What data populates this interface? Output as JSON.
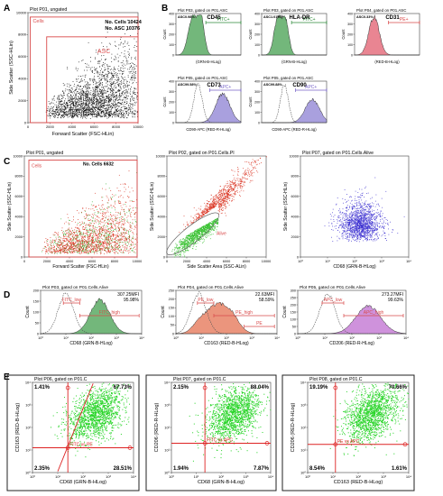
{
  "panel_letters": [
    "A",
    "B",
    "C",
    "D",
    "E"
  ],
  "chart_data": [
    {
      "id": "A",
      "type": "scatter",
      "title": "Plot P01, ungated",
      "xlabel": "Forward Scatter (FSC-HLin)",
      "ylabel": "Side Scatter (SSC-HLin)",
      "xlim": [
        0,
        10000
      ],
      "ylim": [
        0,
        10000
      ],
      "xticks": [
        "0",
        "2000",
        "4000",
        "6000",
        "8000",
        "10000"
      ],
      "yticks": [
        "0",
        "2000",
        "4000",
        "6000",
        "8000",
        "10000"
      ],
      "gates": [
        {
          "name": "Cells",
          "x0": 200,
          "x1": 10000,
          "y0": 0,
          "y1": 9600,
          "color": "#d94a4a"
        },
        {
          "name": "ASC",
          "x0": 1700,
          "x1": 10000,
          "y0": 0,
          "y1": 7800,
          "color": "#d94a4a"
        }
      ],
      "annotations": [
        "No. Cells 10424",
        "No. ASC 10376"
      ],
      "point_color": "#111111"
    },
    {
      "id": "B1",
      "type": "area",
      "title": "Plot P03, gated on P01.ASC",
      "marker": "CD45",
      "percent": "ASC0.98%",
      "xlabel": "(GRN-B-HLog)",
      "ylabel": "Count",
      "xlim": [
        0,
        5
      ],
      "ylim": [
        0,
        400
      ],
      "yticks": [
        "0",
        "100",
        "200",
        "300",
        "400"
      ],
      "gate": {
        "label": "FITC+",
        "from": 2.3,
        "to": 5
      },
      "peaks": [
        {
          "mu": 1.3,
          "sd": 0.35,
          "h": 1.0
        },
        {
          "mu": 1.95,
          "sd": 0.25,
          "h": 0.9
        }
      ],
      "fill": "#5aaa64"
    },
    {
      "id": "B2",
      "type": "area",
      "title": "Plot P03, gated on P01.ASC",
      "marker": "HLA-DR",
      "percent": "ASC1.01%",
      "xlabel": "(GRN-B-HLog)",
      "ylabel": "Count",
      "xlim": [
        0,
        5
      ],
      "ylim": [
        0,
        400
      ],
      "yticks": [
        "0",
        "100",
        "200",
        "300",
        "400"
      ],
      "gate": {
        "label": "FITC+",
        "from": 2.3,
        "to": 5
      },
      "peaks": [
        {
          "mu": 1.25,
          "sd": 0.3,
          "h": 0.95
        },
        {
          "mu": 1.85,
          "sd": 0.25,
          "h": 0.85
        }
      ],
      "fill": "#5aaa64"
    },
    {
      "id": "B3",
      "type": "area",
      "title": "Plot P04, gated on P01.ASC",
      "marker": "CD31",
      "percent": "ASC0.33%",
      "xlabel": "(RED-B-HLog)",
      "ylabel": "Count",
      "xlim": [
        0,
        5
      ],
      "ylim": [
        0,
        400
      ],
      "yticks": [
        "0",
        "100",
        "200",
        "300",
        "400"
      ],
      "gate": {
        "label": "PE+",
        "from": 2.6,
        "to": 5
      },
      "peaks": [
        {
          "mu": 1.5,
          "sd": 0.4,
          "h": 1.0
        }
      ],
      "fill": "#e5707f"
    },
    {
      "id": "B4",
      "type": "area",
      "title": "Plot P05, gated on P01.ASC",
      "marker": "CD73",
      "percent": "ASC99.58%",
      "xlabel": "CD90-APC (RED-R-HLog)",
      "ylabel": "Count",
      "xlim": [
        0,
        5
      ],
      "ylim": [
        0,
        400
      ],
      "yticks": [
        "0",
        "100",
        "200",
        "300",
        "400"
      ],
      "gate": {
        "label": "APC+",
        "from": 2.6,
        "to": 5
      },
      "peaks": [
        {
          "mu": 3.6,
          "sd": 0.55,
          "h": 0.75
        }
      ],
      "control": {
        "mu": 1.7,
        "sd": 0.32,
        "h": 1.0
      },
      "fill": "#9a8fd8"
    },
    {
      "id": "B5",
      "type": "area",
      "title": "Plot P05, gated on P01.ASC",
      "marker": "CD90",
      "percent": "ASC99.88%",
      "xlabel": "CD90-APC (RED-R-HLog)",
      "ylabel": "Count",
      "xlim": [
        0,
        5
      ],
      "ylim": [
        0,
        400
      ],
      "yticks": [
        "0",
        "100",
        "200",
        "300",
        "400"
      ],
      "gate": {
        "label": "APC+",
        "from": 2.6,
        "to": 5
      },
      "peaks": [
        {
          "mu": 3.9,
          "sd": 0.55,
          "h": 0.6
        }
      ],
      "control": {
        "mu": 1.75,
        "sd": 0.3,
        "h": 1.0
      },
      "fill": "#9a8fd8"
    },
    {
      "id": "C1",
      "type": "scatter",
      "title": "Plot P01, ungated",
      "xlabel": "Forward Scatter (FSC-HLin)",
      "ylabel": "Side Scatter (SSC-HLin)",
      "xlim": [
        0,
        10000
      ],
      "ylim": [
        0,
        10000
      ],
      "xticks": [
        "0",
        "2000",
        "4000",
        "6000",
        "8000",
        "10000"
      ],
      "yticks": [
        "0",
        "2000",
        "4000",
        "6000",
        "8000",
        "10000"
      ],
      "gates": [
        {
          "name": "Cells",
          "x0": 400,
          "x1": 10000,
          "y0": 0,
          "y1": 9600,
          "color": "#d94a4a"
        }
      ],
      "annotations": [
        "No. Cells 6632"
      ],
      "point_color": "#d9311e"
    },
    {
      "id": "C2",
      "type": "scatter",
      "title": "Plot P02, gated on P01.Cells.PI",
      "xlabel": "Side Scatter Area (SSC-ALin)",
      "ylabel": "Side Scatter (SSC-HLin)",
      "xlim": [
        0,
        10000
      ],
      "ylim": [
        0,
        10000
      ],
      "xticks": [
        "0",
        "2000",
        "4000",
        "6000",
        "8000",
        "10000"
      ],
      "yticks": [
        "0",
        "2000",
        "4000",
        "6000",
        "8000",
        "10000"
      ],
      "gate_label": "Alive",
      "point_color": "#d9311e"
    },
    {
      "id": "C3",
      "type": "scatter",
      "title": "Plot P07, gated on P01.Cells.Alive",
      "xlabel": "CD68 (GRN-B-HLog)",
      "ylabel": "Side Scatter (SSC-HLin)",
      "xlim": [
        0,
        4
      ],
      "ylim": [
        0,
        10000
      ],
      "xticks": [
        "10⁰",
        "10¹",
        "10²",
        "10³",
        "10⁴"
      ],
      "yticks": [
        "0",
        "2000",
        "4000",
        "6000",
        "8000",
        "10000"
      ],
      "point_color": "#3b2fd0"
    },
    {
      "id": "D1",
      "type": "area",
      "title": "Plot P03, gated on P01.Cells.Alive",
      "xlabel": "CD68 (GRN-B-HLog)",
      "ylabel": "Count",
      "xlim": [
        0,
        4
      ],
      "ylim": [
        0,
        200
      ],
      "xticks": [
        "10⁰",
        "10¹",
        "10²",
        "10³",
        "10⁴"
      ],
      "yticks": [
        "0",
        "50",
        "100",
        "150",
        "200"
      ],
      "mfi": "307.25MFI",
      "percent": "95.98%",
      "gate_low": {
        "label": "FITC_low",
        "from": 0.9,
        "to": 1.55
      },
      "gate_high": {
        "label": "FITC_high",
        "from": 1.55,
        "to": 3.9
      },
      "peaks": [
        {
          "mu": 2.35,
          "sd": 0.38,
          "h": 0.85
        }
      ],
      "control": {
        "mu": 1.0,
        "sd": 0.3,
        "h": 1.0
      },
      "fill": "#5aaa64"
    },
    {
      "id": "D2",
      "type": "area",
      "title": "Plot P04, gated on P01.Cells.Alive",
      "xlabel": "CD163 (RED-B-HLog)",
      "ylabel": "Count",
      "xlim": [
        0,
        4
      ],
      "ylim": [
        0,
        250
      ],
      "xticks": [
        "10⁰",
        "10¹",
        "10²",
        "10³",
        "10⁴"
      ],
      "yticks": [
        "0",
        "50",
        "100",
        "150",
        "200",
        "250"
      ],
      "mfi": "22.63MFI",
      "percent": "58.59%",
      "gate_low": {
        "label": "PE_low",
        "from": 0.85,
        "to": 1.5
      },
      "gate_high": {
        "label": "PE_high",
        "from": 1.5,
        "to": 3.9
      },
      "gate_extra": {
        "label": "PE",
        "from": 2.7,
        "to": 3.9
      },
      "peaks": [
        {
          "mu": 1.0,
          "sd": 0.3,
          "h": 0.35
        },
        {
          "mu": 1.55,
          "sd": 0.3,
          "h": 0.5
        },
        {
          "mu": 2.1,
          "sd": 0.35,
          "h": 0.55
        }
      ],
      "control": {
        "mu": 0.9,
        "sd": 0.3,
        "h": 1.0
      },
      "fill": "#e88266"
    },
    {
      "id": "D3",
      "type": "area",
      "title": "Plot P05, gated on P01.Cells.Alive",
      "xlabel": "CD206 (RED-R-HLog)",
      "ylabel": "Count",
      "xlim": [
        0,
        4
      ],
      "ylim": [
        0,
        300
      ],
      "xticks": [
        "10⁰",
        "10¹",
        "10²",
        "10³",
        "10⁴"
      ],
      "yticks": [
        "0",
        "50",
        "100",
        "150",
        "200",
        "250",
        "300"
      ],
      "mfi": "273.27MFI",
      "percent": "99.63%",
      "gate_low": {
        "label": "APC_low",
        "from": 0.9,
        "to": 1.7
      },
      "gate_high": {
        "label": "APC_high",
        "from": 1.7,
        "to": 3.9
      },
      "peaks": [
        {
          "mu": 2.6,
          "sd": 0.45,
          "h": 0.7
        }
      ],
      "control": {
        "mu": 1.1,
        "sd": 0.28,
        "h": 1.0
      },
      "fill": "#c77fd6"
    },
    {
      "id": "E1",
      "type": "scatter",
      "title": "Plot P06, gated on P01.C",
      "xlabel": "CD68 (GRN-B-HLog)",
      "ylabel": "CD163 (RED-B-HLog)",
      "xlim": [
        0,
        4
      ],
      "ylim": [
        0,
        4
      ],
      "xticks": [
        "10⁰",
        "10¹",
        "10²",
        "10³",
        "10⁴"
      ],
      "yticks": [
        "10⁰",
        "10¹",
        "10²",
        "10³",
        "10⁴"
      ],
      "quad_x": 1.4,
      "quad_y": 1.1,
      "quadrants": {
        "ul": "1.41%",
        "ur": "67.73%",
        "ll": "2.35%",
        "lr": "28.51%"
      },
      "gate_label": "FITC vs PE",
      "diagonal": true,
      "point_color": "#27d427"
    },
    {
      "id": "E2",
      "type": "scatter",
      "title": "Plot P07, gated on P01.C",
      "xlabel": "CD68 (GRN-B-HLog)",
      "ylabel": "CD206 (RED-R-HLog)",
      "xlim": [
        0,
        4
      ],
      "ylim": [
        0,
        4
      ],
      "xticks": [
        "10⁰",
        "10¹",
        "10²",
        "10³",
        "10⁴"
      ],
      "yticks": [
        "10⁰",
        "10¹",
        "10²",
        "10³",
        "10⁴"
      ],
      "quad_x": 1.35,
      "quad_y": 1.3,
      "quadrants": {
        "ul": "2.15%",
        "ur": "88.04%",
        "ll": "1.94%",
        "lr": "7.87%"
      },
      "gate_label": "FITC vs APC",
      "diagonal": false,
      "point_color": "#27d427"
    },
    {
      "id": "E3",
      "type": "scatter",
      "title": "Plot P08, gated on P01.C",
      "xlabel": "CD163 (RED-B-HLog)",
      "ylabel": "CD206 (RED-R-HLog)",
      "xlim": [
        0,
        4
      ],
      "ylim": [
        0,
        4
      ],
      "xticks": [
        "10⁰",
        "10¹",
        "10²",
        "10³",
        "10⁴"
      ],
      "yticks": [
        "10⁰",
        "10¹",
        "10²",
        "10³",
        "10⁴"
      ],
      "quad_x": 1.1,
      "quad_y": 1.25,
      "quadrants": {
        "ul": "19.19%",
        "ur": "70.66%",
        "ll": "8.54%",
        "lr": "1.61%"
      },
      "gate_label": "PE vs APC",
      "diagonal": false,
      "point_color": "#27d427"
    }
  ]
}
